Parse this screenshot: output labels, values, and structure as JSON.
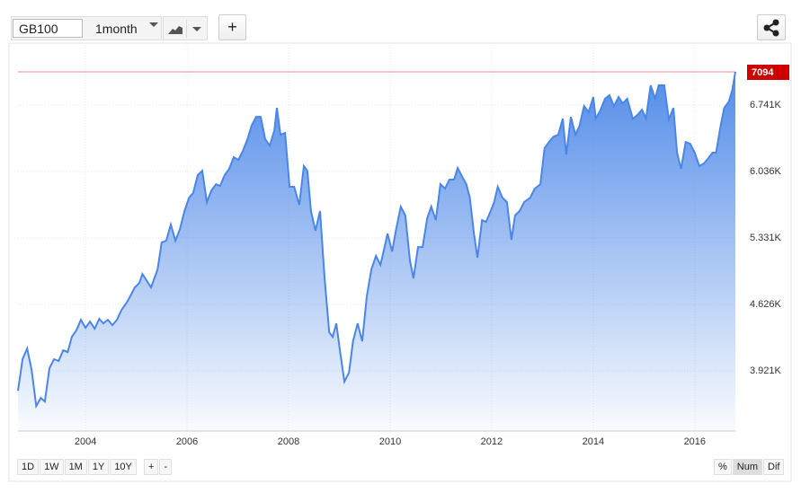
{
  "toolbar": {
    "symbol": "GB100",
    "interval": "1month",
    "add": "+"
  },
  "chart_data": {
    "type": "area",
    "x": [
      2002.67,
      2002.76,
      2002.85,
      2002.94,
      2003.03,
      2003.12,
      2003.2,
      2003.29,
      2003.38,
      2003.47,
      2003.56,
      2003.65,
      2003.73,
      2003.82,
      2003.91,
      2004.0,
      2004.09,
      2004.18,
      2004.27,
      2004.35,
      2004.44,
      2004.53,
      2004.62,
      2004.71,
      2004.8,
      2004.88,
      2004.97,
      2005.06,
      2005.12,
      2005.2,
      2005.29,
      2005.42,
      2005.5,
      2005.59,
      2005.68,
      2005.77,
      2005.86,
      2005.95,
      2006.04,
      2006.12,
      2006.21,
      2006.3,
      2006.39,
      2006.48,
      2006.57,
      2006.65,
      2006.74,
      2006.83,
      2006.92,
      2007.01,
      2007.1,
      2007.19,
      2007.27,
      2007.36,
      2007.45,
      2007.54,
      2007.63,
      2007.72,
      2007.77,
      2007.84,
      2007.93,
      2008.02,
      2008.11,
      2008.21,
      2008.3,
      2008.37,
      2008.44,
      2008.53,
      2008.62,
      2008.71,
      2008.8,
      2008.87,
      2008.94,
      2009.01,
      2009.1,
      2009.19,
      2009.27,
      2009.36,
      2009.45,
      2009.54,
      2009.63,
      2009.72,
      2009.81,
      2009.89,
      2009.95,
      2010.04,
      2010.12,
      2010.21,
      2010.3,
      2010.39,
      2010.46,
      2010.55,
      2010.64,
      2010.73,
      2010.81,
      2010.9,
      2010.99,
      2011.08,
      2011.17,
      2011.26,
      2011.33,
      2011.42,
      2011.5,
      2011.57,
      2011.65,
      2011.72,
      2011.81,
      2011.89,
      2011.98,
      2012.05,
      2012.12,
      2012.21,
      2012.3,
      2012.39,
      2012.46,
      2012.55,
      2012.64,
      2012.76,
      2012.85,
      2012.96,
      2013.04,
      2013.13,
      2013.22,
      2013.31,
      2013.4,
      2013.47,
      2013.56,
      2013.65,
      2013.73,
      2013.82,
      2013.91,
      2014.0,
      2014.05,
      2014.14,
      2014.23,
      2014.32,
      2014.41,
      2014.5,
      2014.58,
      2014.67,
      2014.78,
      2014.87,
      2014.96,
      2015.04,
      2015.13,
      2015.22,
      2015.29,
      2015.4,
      2015.49,
      2015.58,
      2015.65,
      2015.73,
      2015.82,
      2015.91,
      2016.0,
      2016.09,
      2016.18,
      2016.27,
      2016.35,
      2016.42,
      2016.51,
      2016.58,
      2016.67,
      2016.74,
      2016.8
    ],
    "series": [
      {
        "color": "#4a86e8",
        "values": [
          3710,
          4044,
          4158,
          3930,
          3548,
          3634,
          3596,
          3949,
          4044,
          4025,
          4139,
          4120,
          4282,
          4349,
          4463,
          4378,
          4444,
          4368,
          4473,
          4425,
          4463,
          4406,
          4463,
          4568,
          4635,
          4711,
          4806,
          4854,
          4949,
          4883,
          4806,
          4997,
          5283,
          5302,
          5474,
          5302,
          5426,
          5617,
          5760,
          5807,
          5998,
          6045,
          5712,
          5836,
          5902,
          5883,
          5998,
          6064,
          6188,
          6160,
          6255,
          6379,
          6522,
          6617,
          6617,
          6379,
          6312,
          6474,
          6712,
          6427,
          6446,
          5874,
          5874,
          5683,
          6093,
          6045,
          5617,
          5407,
          5617,
          4902,
          4330,
          4282,
          4425,
          4139,
          3806,
          3901,
          4235,
          4425,
          4235,
          4711,
          4997,
          5140,
          5045,
          5235,
          5378,
          5188,
          5426,
          5664,
          5569,
          5092,
          4902,
          5235,
          5235,
          5540,
          5664,
          5521,
          5902,
          5855,
          5950,
          5950,
          6074,
          5979,
          5902,
          5760,
          5378,
          5121,
          5521,
          5502,
          5617,
          5712,
          5874,
          5760,
          5712,
          5312,
          5569,
          5617,
          5712,
          5760,
          5855,
          5902,
          6283,
          6350,
          6407,
          6426,
          6598,
          6217,
          6617,
          6426,
          6522,
          6731,
          6665,
          6827,
          6598,
          6684,
          6808,
          6846,
          6731,
          6827,
          6760,
          6808,
          6598,
          6636,
          6693,
          6598,
          6951,
          6808,
          6951,
          6951,
          6589,
          6712,
          6236,
          6064,
          6350,
          6331,
          6236,
          6093,
          6122,
          6179,
          6236,
          6236,
          6522,
          6712,
          6779,
          6903,
          7094
        ]
      }
    ],
    "last_value": 7094,
    "last_value_color": "#cc0000",
    "xlim": [
      2002.67,
      2016.8
    ],
    "xticks": [
      2004,
      2006,
      2008,
      2010,
      2012,
      2014,
      2016
    ],
    "ylim": [
      3282,
      7380
    ],
    "yticks": [
      {
        "value": 3921,
        "label": "3.921K"
      },
      {
        "value": 4626,
        "label": "4.626K"
      },
      {
        "value": 5331,
        "label": "5.331K"
      },
      {
        "value": 6036,
        "label": "6.036K"
      },
      {
        "value": 6741,
        "label": "6.741K"
      }
    ],
    "grid": true
  },
  "footer": {
    "range_buttons": [
      "1D",
      "1W",
      "1M",
      "1Y",
      "10Y"
    ],
    "zoom_buttons": [
      "+",
      "-"
    ],
    "mode_buttons": [
      "%",
      "Num",
      "Dif"
    ]
  }
}
